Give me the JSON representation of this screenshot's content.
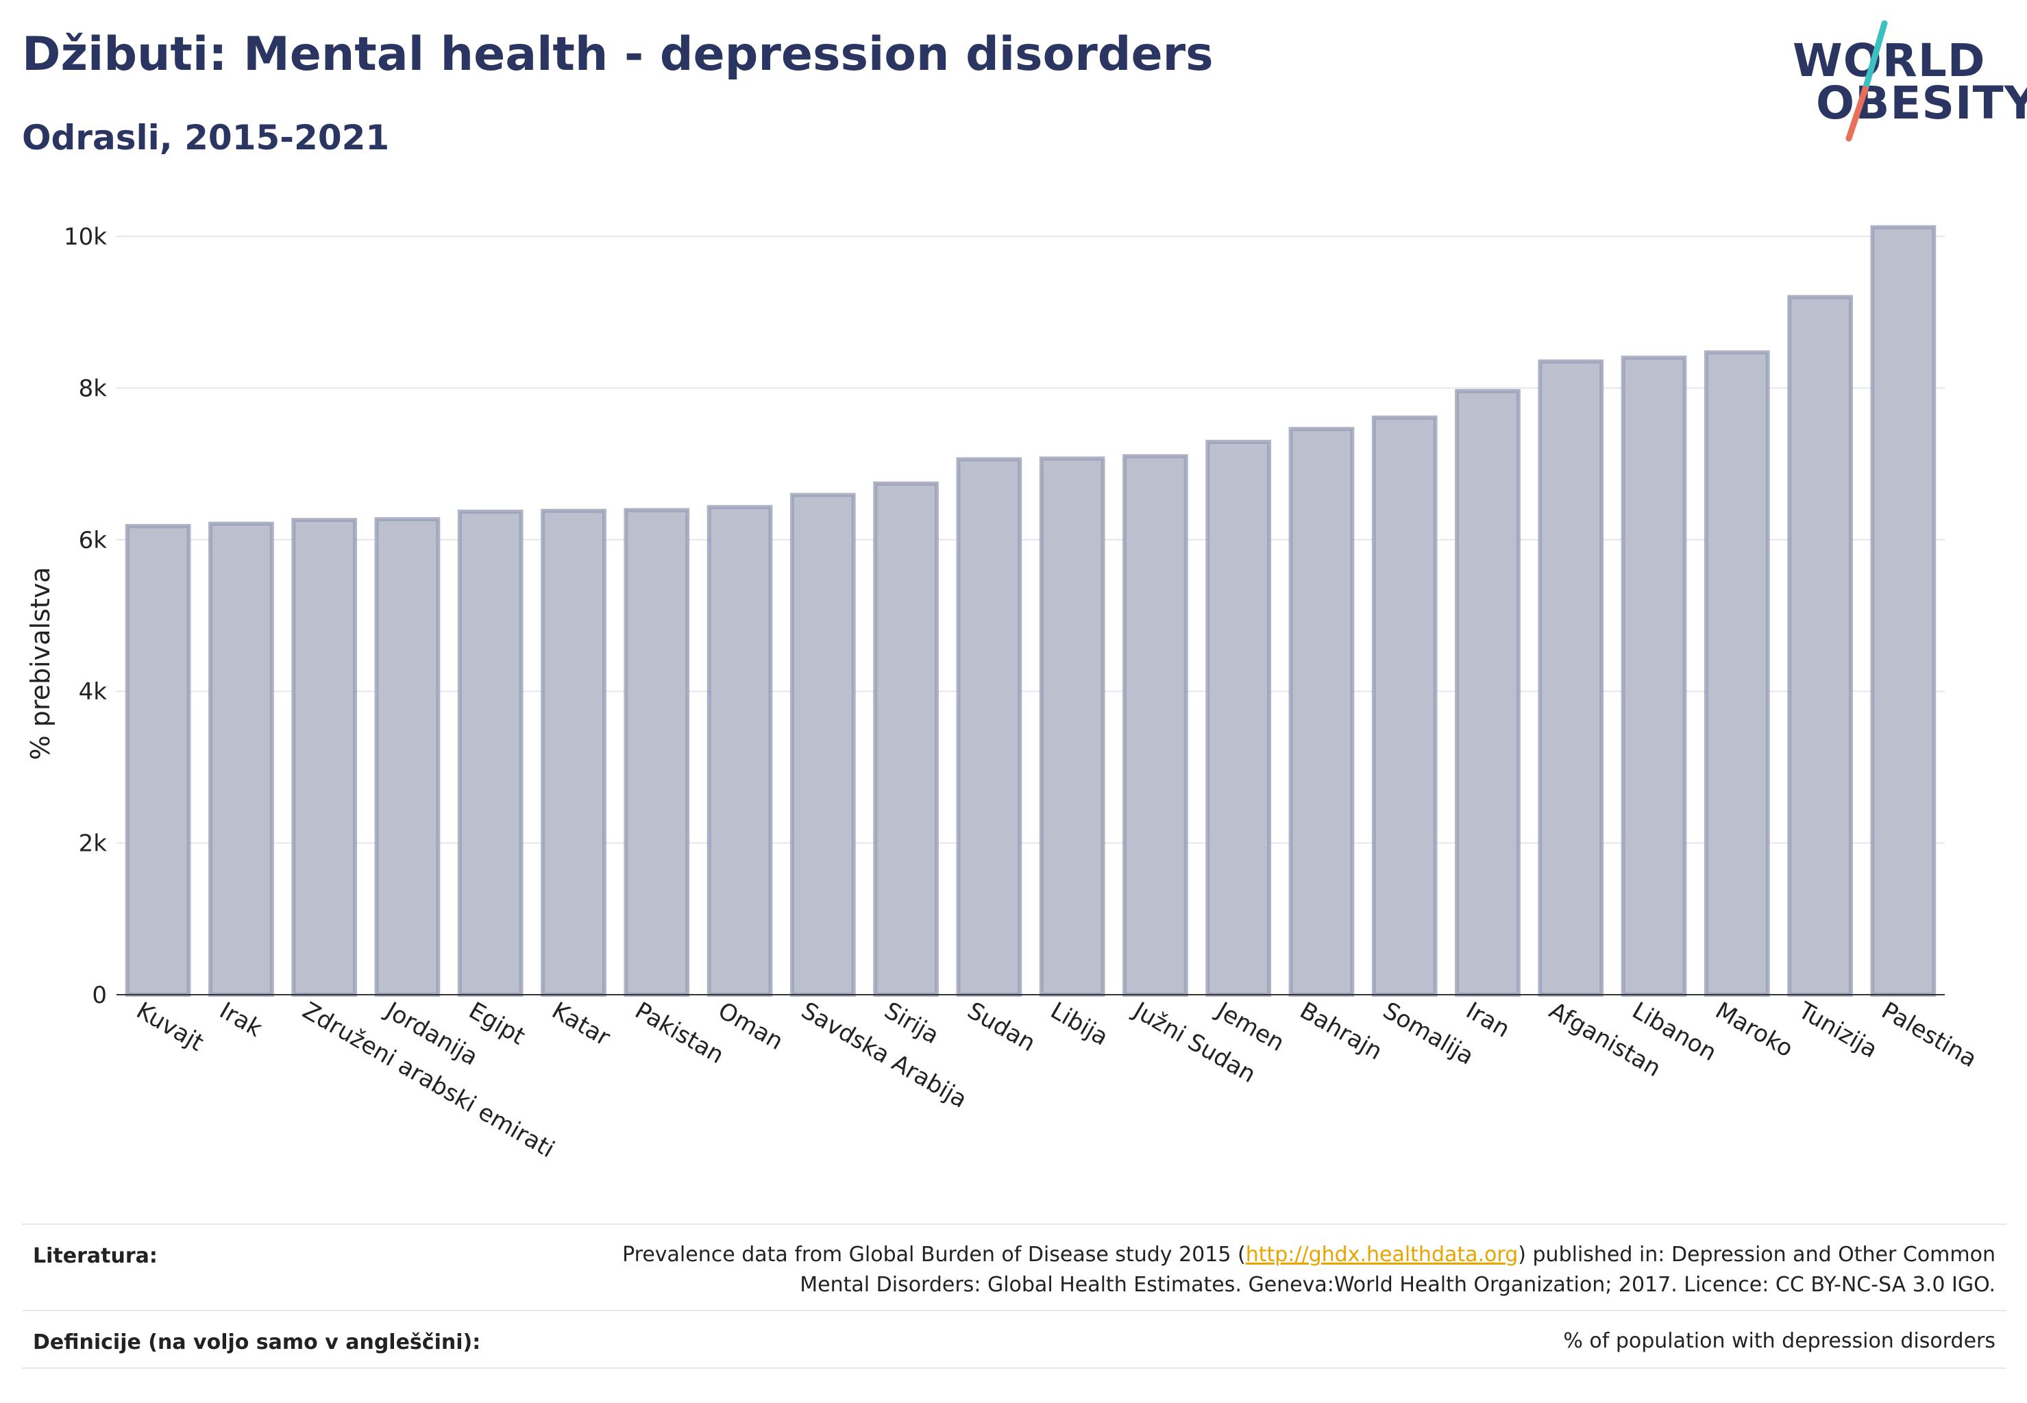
{
  "header": {
    "title": "Džibuti: Mental health - depression disorders",
    "subtitle": "Odrasli, 2015-2021"
  },
  "logo": {
    "line1": "WORLD",
    "line2": "OBESITY",
    "slash_colors": [
      "#3cc0c0",
      "#e8705a"
    ]
  },
  "chart_data": {
    "type": "bar",
    "ylabel": "% prebivalstva",
    "ylim": [
      0,
      10000
    ],
    "yticks": [
      0,
      2000,
      4000,
      6000,
      8000,
      10000
    ],
    "ytick_labels": [
      "0",
      "2k",
      "4k",
      "6k",
      "8k",
      "10k"
    ],
    "grid": true,
    "bar_color": "#bcbfce",
    "bar_edge_color": "#9aa0b8",
    "categories": [
      "Kuvajt",
      "Irak",
      "Združeni arabski emirati",
      "Jordanija",
      "Egipt",
      "Katar",
      "Pakistan",
      "Oman",
      "Savdska Arabija",
      "Sirija",
      "Sudan",
      "Libija",
      "Južni Sudan",
      "Jemen",
      "Bahrajn",
      "Somalija",
      "Iran",
      "Afganistan",
      "Libanon",
      "Maroko",
      "Tunizija",
      "Palestina"
    ],
    "values": [
      6180,
      6210,
      6260,
      6270,
      6370,
      6380,
      6390,
      6430,
      6590,
      6740,
      7060,
      7070,
      7100,
      7290,
      7460,
      7610,
      7960,
      8350,
      8400,
      8470,
      9200,
      10120
    ]
  },
  "footer": {
    "literature_label": "Literatura:",
    "literature_prefix": "Prevalence data from Global Burden of Disease study 2015 (",
    "literature_link": "http://ghdx.healthdata.org",
    "literature_suffix": ") published in: Depression and Other Common",
    "literature_line2": "Mental Disorders: Global Health Estimates. Geneva:World Health Organization; 2017. Licence: CC BY-NC-SA 3.0 IGO.",
    "definitions_label": "Definicije (na voljo samo v angleščini):",
    "definitions_text": "% of population with depression disorders"
  }
}
